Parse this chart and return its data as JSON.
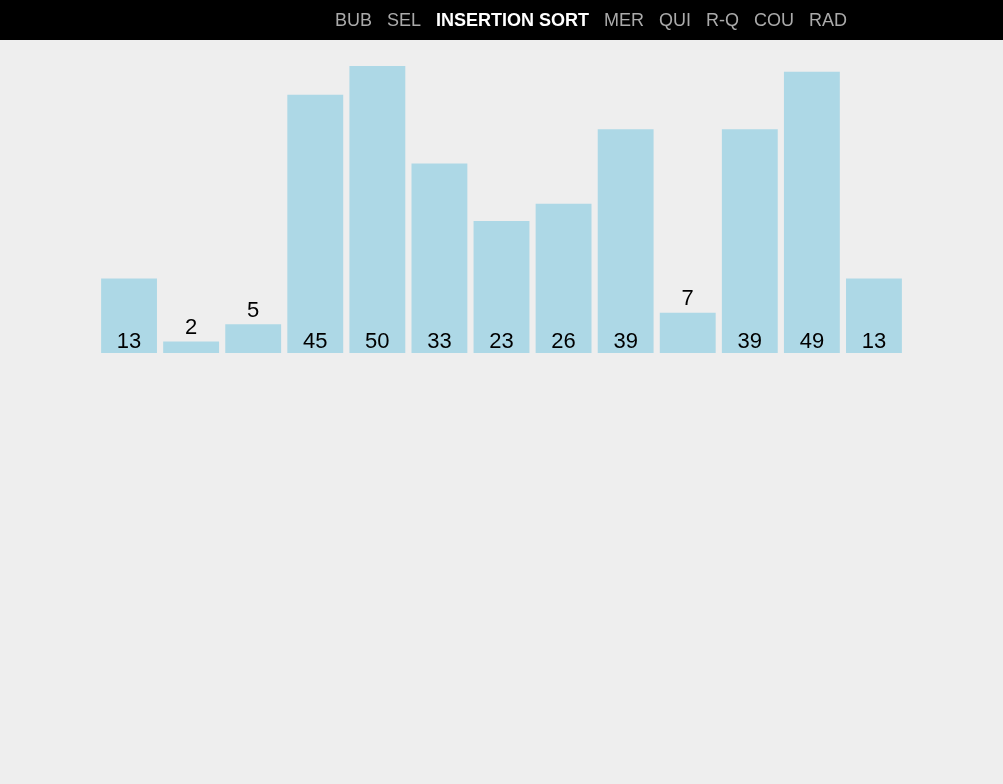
{
  "chart_data": {
    "type": "bar",
    "title": "INSERTION SORT",
    "annotations": [
      "BUB",
      "SEL",
      "MER",
      "QUI",
      "R-Q",
      "COU",
      "RAD"
    ],
    "categories": [
      null,
      null,
      null,
      null,
      null,
      null,
      null,
      null,
      null,
      null,
      null,
      null,
      null
    ],
    "values": [
      13,
      2,
      5,
      45,
      50,
      33,
      23,
      26,
      39,
      7,
      39,
      49,
      13
    ],
    "color": "#add8e6",
    "data_labels": true
  }
}
